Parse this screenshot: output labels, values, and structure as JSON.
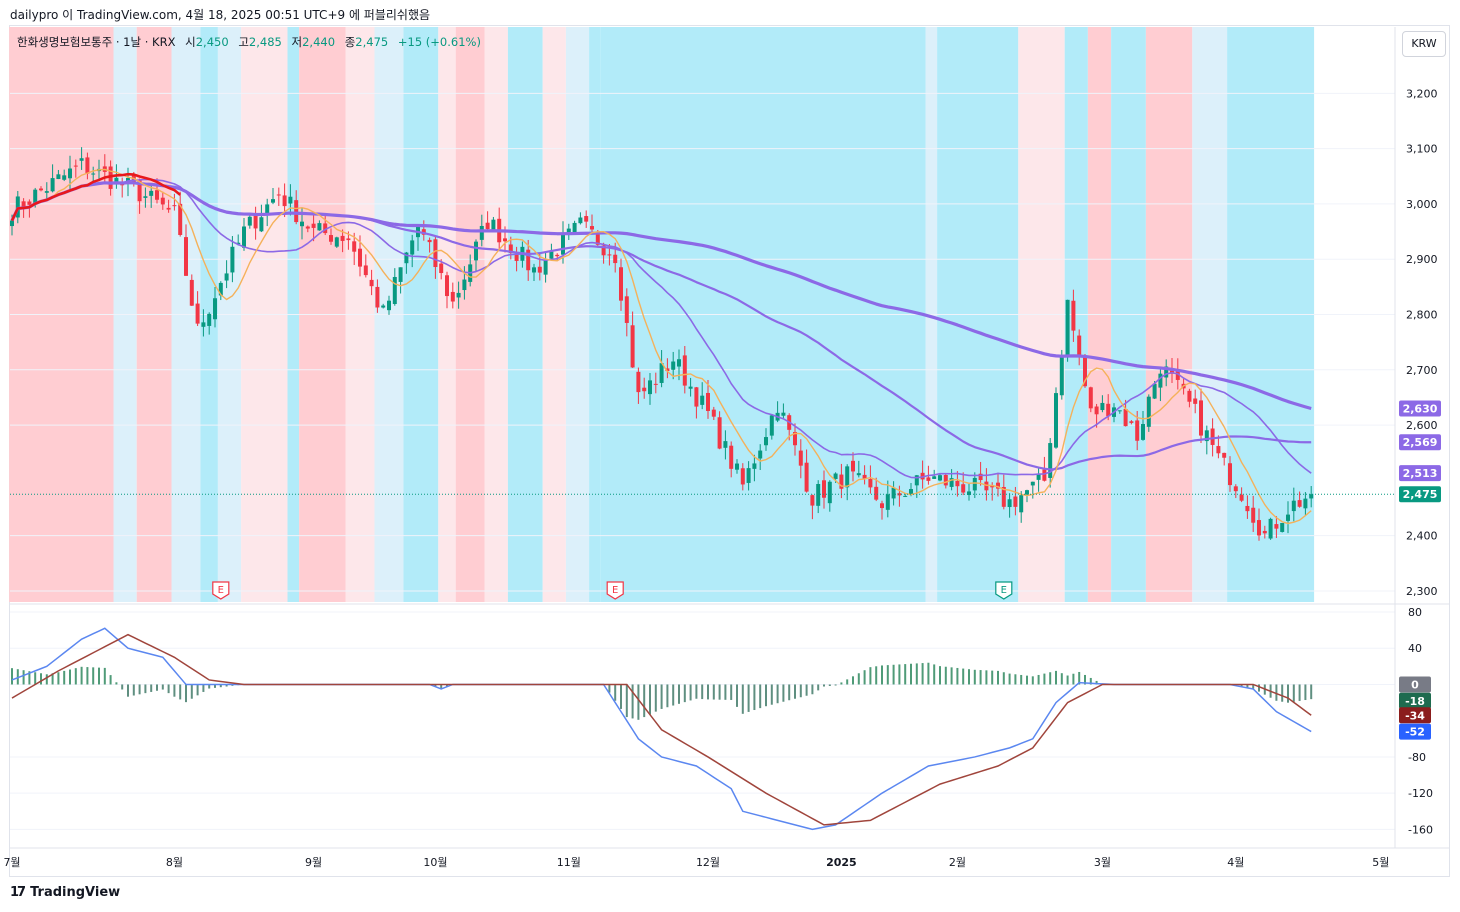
{
  "header": {
    "text": "dailypro 이 TradingView.com, 4월 18, 2025 00:51 UTC+9 에 퍼블리쉬했음"
  },
  "legend": {
    "symbol": "한화생명보험보통주 · 1날 · KRX",
    "open_label": "시",
    "open": "2,450",
    "high_label": "고",
    "high": "2,485",
    "low_label": "저",
    "low": "2,440",
    "close_label": "종",
    "close": "2,475",
    "change": "+15 (+0.61%)"
  },
  "currency": "KRW",
  "footer": {
    "brand": "TradingView"
  },
  "colors": {
    "up": "#089981",
    "down": "#f23645",
    "red_band": "#ffcdd2",
    "light_red_band": "#fde7ea",
    "blue_band": "#b2ebf9",
    "light_blue_band": "#dcf0fa",
    "ma_purple": "#8c69e6",
    "macd_line": "#5b87f0",
    "signal_line": "#a0453c",
    "accent_red": "#e8181b",
    "orange": "#f5b15a"
  },
  "chart_data": [
    {
      "type": "candlestick",
      "title": "한화생명보험보통주 · 1날 · KRX",
      "x_ticks": [
        "7월",
        "8월",
        "9월",
        "10월",
        "11월",
        "12월",
        "2025",
        "2월",
        "3월",
        "4월",
        "5월"
      ],
      "y_ticks": [
        "3,200",
        "3,100",
        "3,000",
        "2,900",
        "2,800",
        "2,700",
        "2,600",
        "2,400",
        "2,300"
      ],
      "ylim": [
        2280,
        3320
      ],
      "price_labels": [
        {
          "label": "2,630",
          "value": 2630,
          "color": "#8c69e6"
        },
        {
          "label": "2,569",
          "value": 2569,
          "color": "#8c69e6"
        },
        {
          "label": "2,513",
          "value": 2513,
          "color": "#8c69e6"
        },
        {
          "label": "2,475",
          "value": 2475,
          "color": "#089981"
        }
      ],
      "last_price": 2475,
      "earnings_markers": [
        {
          "label": "E",
          "month": "8월",
          "kind": "down"
        },
        {
          "label": "E",
          "month": "11월",
          "kind": "down"
        },
        {
          "label": "E",
          "month": "2월",
          "kind": "up"
        }
      ],
      "anchors": [
        {
          "x": 0,
          "close": 2990
        },
        {
          "x": 12,
          "close": 3070
        },
        {
          "x": 22,
          "close": 3020
        },
        {
          "x": 28,
          "close": 2980
        },
        {
          "x": 32,
          "close": 2770
        },
        {
          "x": 40,
          "close": 2950
        },
        {
          "x": 46,
          "close": 3020
        },
        {
          "x": 52,
          "close": 2950
        },
        {
          "x": 58,
          "close": 2940
        },
        {
          "x": 64,
          "close": 2800
        },
        {
          "x": 70,
          "close": 2960
        },
        {
          "x": 76,
          "close": 2820
        },
        {
          "x": 82,
          "close": 2970
        },
        {
          "x": 90,
          "close": 2880
        },
        {
          "x": 98,
          "close": 2960
        },
        {
          "x": 104,
          "close": 2910
        },
        {
          "x": 108,
          "close": 2650
        },
        {
          "x": 114,
          "close": 2720
        },
        {
          "x": 120,
          "close": 2620
        },
        {
          "x": 126,
          "close": 2490
        },
        {
          "x": 132,
          "close": 2640
        },
        {
          "x": 138,
          "close": 2470
        },
        {
          "x": 144,
          "close": 2510
        },
        {
          "x": 150,
          "close": 2460
        },
        {
          "x": 158,
          "close": 2505
        },
        {
          "x": 166,
          "close": 2485
        },
        {
          "x": 172,
          "close": 2460
        },
        {
          "x": 178,
          "close": 2500
        },
        {
          "x": 182,
          "close": 2820
        },
        {
          "x": 186,
          "close": 2620
        },
        {
          "x": 190,
          "close": 2640
        },
        {
          "x": 194,
          "close": 2580
        },
        {
          "x": 198,
          "close": 2710
        },
        {
          "x": 204,
          "close": 2620
        },
        {
          "x": 208,
          "close": 2540
        },
        {
          "x": 212,
          "close": 2480
        },
        {
          "x": 216,
          "close": 2400
        },
        {
          "x": 220,
          "close": 2450
        },
        {
          "x": 224,
          "close": 2475
        }
      ],
      "moving_averages": [
        {
          "name": "MA-short",
          "end": 2513
        },
        {
          "name": "MA-mid",
          "end": 2569
        },
        {
          "name": "MA-long",
          "end": 2630
        }
      ]
    },
    {
      "type": "macd",
      "y_ticks": [
        "80",
        "40",
        "0",
        "-80",
        "-120",
        "-160"
      ],
      "ylim": [
        -175,
        80
      ],
      "value_labels": [
        {
          "label": "0",
          "value": 0,
          "color": "#787b86"
        },
        {
          "label": "-18",
          "value": -18,
          "color": "#1e6b4f"
        },
        {
          "label": "-34",
          "value": -34,
          "color": "#8b1d1d"
        },
        {
          "label": "-52",
          "value": -52,
          "color": "#2962ff"
        }
      ],
      "macd_anchors": [
        {
          "x": 0,
          "y": 5
        },
        {
          "x": 6,
          "y": 20
        },
        {
          "x": 12,
          "y": 50
        },
        {
          "x": 16,
          "y": 62
        },
        {
          "x": 20,
          "y": 40
        },
        {
          "x": 26,
          "y": 30
        },
        {
          "x": 30,
          "y": 0
        },
        {
          "x": 72,
          "y": 0
        },
        {
          "x": 74,
          "y": -5
        },
        {
          "x": 76,
          "y": 0
        },
        {
          "x": 102,
          "y": 0
        },
        {
          "x": 108,
          "y": -60
        },
        {
          "x": 112,
          "y": -80
        },
        {
          "x": 118,
          "y": -90
        },
        {
          "x": 124,
          "y": -115
        },
        {
          "x": 126,
          "y": -140
        },
        {
          "x": 132,
          "y": -150
        },
        {
          "x": 138,
          "y": -160
        },
        {
          "x": 142,
          "y": -155
        },
        {
          "x": 150,
          "y": -120
        },
        {
          "x": 158,
          "y": -90
        },
        {
          "x": 166,
          "y": -80
        },
        {
          "x": 172,
          "y": -70
        },
        {
          "x": 176,
          "y": -60
        },
        {
          "x": 180,
          "y": -20
        },
        {
          "x": 184,
          "y": 2
        },
        {
          "x": 190,
          "y": 0
        },
        {
          "x": 210,
          "y": 0
        },
        {
          "x": 214,
          "y": -5
        },
        {
          "x": 218,
          "y": -30
        },
        {
          "x": 224,
          "y": -52
        }
      ],
      "signal_anchors": [
        {
          "x": 0,
          "y": -15
        },
        {
          "x": 8,
          "y": 15
        },
        {
          "x": 20,
          "y": 55
        },
        {
          "x": 28,
          "y": 30
        },
        {
          "x": 34,
          "y": 5
        },
        {
          "x": 40,
          "y": 0
        },
        {
          "x": 106,
          "y": 0
        },
        {
          "x": 112,
          "y": -50
        },
        {
          "x": 120,
          "y": -80
        },
        {
          "x": 130,
          "y": -120
        },
        {
          "x": 140,
          "y": -155
        },
        {
          "x": 148,
          "y": -150
        },
        {
          "x": 160,
          "y": -110
        },
        {
          "x": 170,
          "y": -90
        },
        {
          "x": 176,
          "y": -70
        },
        {
          "x": 182,
          "y": -20
        },
        {
          "x": 188,
          "y": 0
        },
        {
          "x": 214,
          "y": 0
        },
        {
          "x": 220,
          "y": -15
        },
        {
          "x": 224,
          "y": -34
        }
      ]
    }
  ]
}
